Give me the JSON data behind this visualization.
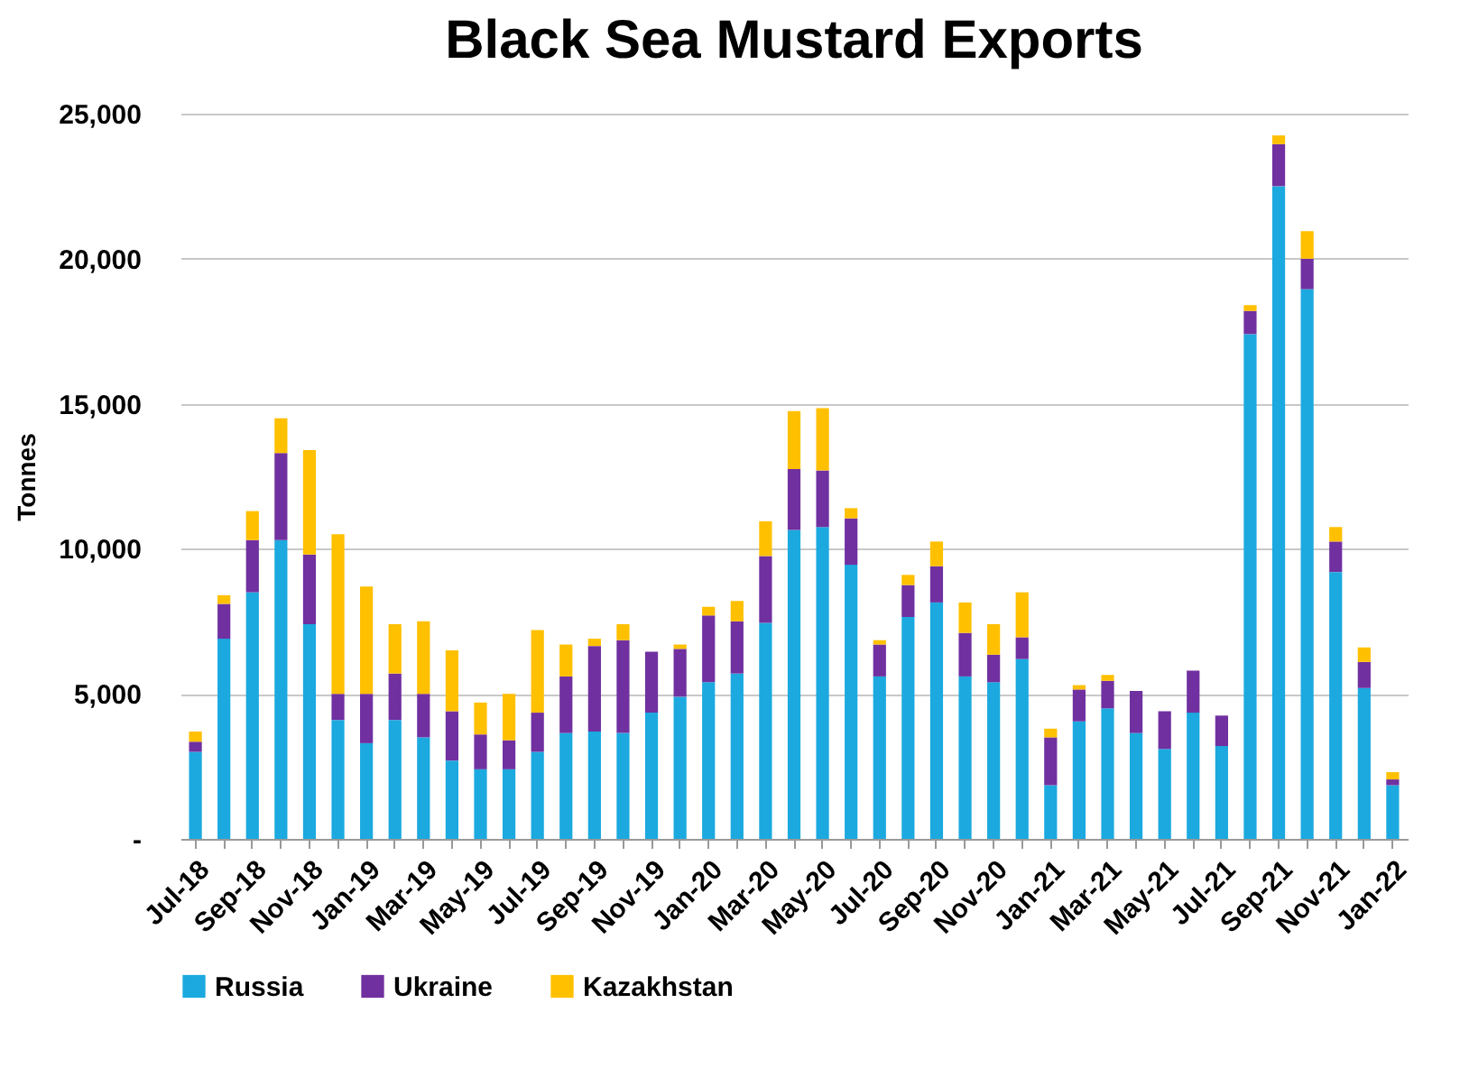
{
  "chart_data": {
    "type": "bar",
    "title": "Black Sea Mustard Exports",
    "ylabel": "Tonnes",
    "stacked": true,
    "grid": "y",
    "legend": "bottom",
    "categories": [
      "Jul-18",
      null,
      "Sep-18",
      null,
      "Nov-18",
      null,
      "Jan-19",
      null,
      "Mar-19",
      null,
      "May-19",
      null,
      "Jul-19",
      null,
      "Sep-19",
      null,
      "Nov-19",
      null,
      "Jan-20",
      null,
      "Mar-20",
      null,
      "May-20",
      null,
      "Jul-20",
      null,
      "Sep-20",
      null,
      "Nov-20",
      null,
      "Jan-21",
      null,
      "Mar-21",
      null,
      "May-21",
      null,
      "Jul-21",
      null,
      "Sep-21",
      null,
      "Nov-21",
      null,
      "Jan-22"
    ],
    "ylim": [
      0,
      25000
    ],
    "yticks": [
      {
        "value": 0,
        "label": "-"
      },
      {
        "value": 5000,
        "label": "5,000"
      },
      {
        "value": 10000,
        "label": "10,000"
      },
      {
        "value": 15000,
        "label": "15,000"
      },
      {
        "value": 20000,
        "label": "20,000"
      },
      {
        "value": 25000,
        "label": "25,000"
      }
    ],
    "series": [
      {
        "name": "Russia",
        "color": "#1ba9df",
        "values": [
          3000,
          6900,
          8500,
          10300,
          7400,
          4100,
          3300,
          4100,
          3500,
          2700,
          2400,
          2400,
          3000,
          3650,
          3700,
          3650,
          4350,
          4900,
          5400,
          5700,
          7450,
          10650,
          10750,
          9450,
          5600,
          7650,
          8150,
          5600,
          5400,
          6200,
          1850,
          4050,
          4500,
          3650,
          3100,
          4350,
          3200,
          17400,
          22500,
          18950,
          9200,
          5200,
          1850
        ]
      },
      {
        "name": "Ukraine",
        "color": "#7030a0",
        "values": [
          350,
          1200,
          1800,
          3000,
          2400,
          900,
          1700,
          1600,
          1500,
          1700,
          1200,
          1000,
          1350,
          1950,
          2950,
          3200,
          2100,
          1650,
          2300,
          1800,
          2300,
          2100,
          1950,
          1600,
          1100,
          1100,
          1250,
          1500,
          950,
          750,
          1650,
          1100,
          950,
          1450,
          1300,
          1450,
          1050,
          800,
          1450,
          1050,
          1050,
          900,
          200
        ]
      },
      {
        "name": "Kazakhstan",
        "color": "#ffc000",
        "values": [
          350,
          300,
          1000,
          1200,
          3600,
          5500,
          3700,
          1700,
          2500,
          2100,
          1100,
          1600,
          2850,
          1100,
          250,
          550,
          0,
          150,
          300,
          700,
          1200,
          2000,
          2150,
          350,
          150,
          350,
          850,
          1050,
          1050,
          1550,
          300,
          150,
          200,
          0,
          0,
          0,
          0,
          200,
          300,
          950,
          500,
          500,
          250
        ]
      }
    ]
  }
}
